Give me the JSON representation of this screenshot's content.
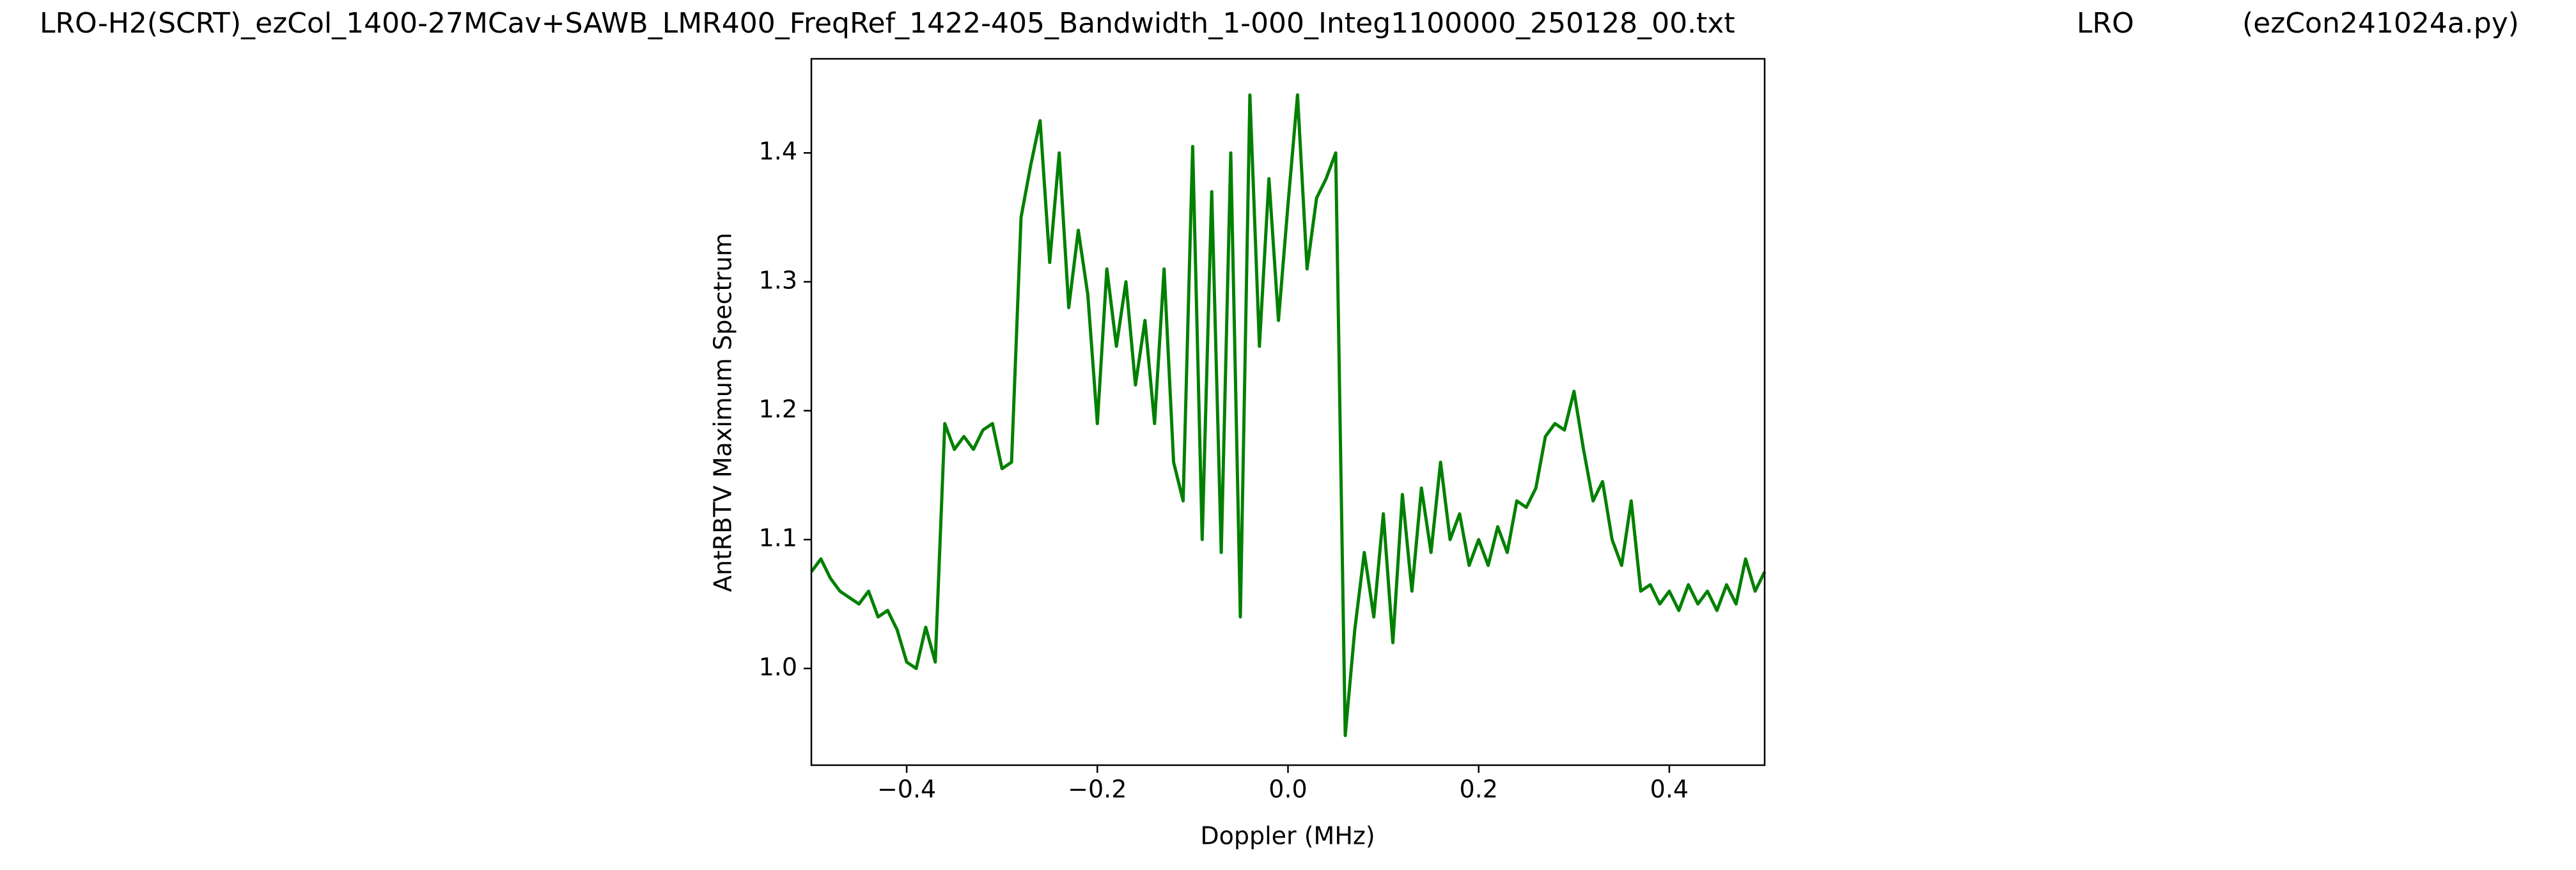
{
  "chart_data": {
    "type": "line",
    "title": "LRO-H2(SCRT)_ezCol_1400-27MCav+SAWB_LMR400_FreqRef_1422-405_Bandwidth_1-000_Integ1100000_250128_00.txt",
    "annotations": [
      "LRO",
      "(ezCon241024a.py)"
    ],
    "xlabel": "Doppler (MHz)",
    "ylabel": "AntRBTV Maximum Spectrum",
    "color": "#008000",
    "xlim": [
      -0.5,
      0.5
    ],
    "ylim": [
      0.925,
      1.473
    ],
    "xticks": [
      {
        "value": -0.4,
        "label": "−0.4"
      },
      {
        "value": -0.2,
        "label": "−0.2"
      },
      {
        "value": 0,
        "label": "0.0"
      },
      0.2,
      0.4
    ],
    "yticks": [
      {
        "value": 1,
        "label": "1.0"
      },
      1.1,
      1.2,
      1.3,
      1.4
    ],
    "x": [
      -0.5,
      -0.49,
      -0.48,
      -0.47,
      -0.46,
      -0.45,
      -0.44,
      -0.43,
      -0.42,
      -0.41,
      -0.4,
      -0.39,
      -0.38,
      -0.37,
      -0.36,
      -0.35,
      -0.34,
      -0.33,
      -0.32,
      -0.31,
      -0.3,
      -0.29,
      -0.28,
      -0.27,
      -0.26,
      -0.25,
      -0.24,
      -0.23,
      -0.22,
      -0.21,
      -0.2,
      -0.19,
      -0.18,
      -0.17,
      -0.16,
      -0.15,
      -0.14,
      -0.13,
      -0.12,
      -0.11,
      -0.1,
      -0.09,
      -0.08,
      -0.07,
      -0.06,
      -0.05,
      -0.04,
      -0.03,
      -0.02,
      -0.01,
      0,
      0.01,
      0.02,
      0.03,
      0.04,
      0.05,
      0.06,
      0.07,
      0.08,
      0.09,
      0.1,
      0.11,
      0.12,
      0.13,
      0.14,
      0.15,
      0.16,
      0.17,
      0.18,
      0.19,
      0.2,
      0.21,
      0.22,
      0.23,
      0.24,
      0.25,
      0.26,
      0.27,
      0.28,
      0.29,
      0.3,
      0.31,
      0.32,
      0.33,
      0.34,
      0.35,
      0.36,
      0.37,
      0.38,
      0.39,
      0.4,
      0.41,
      0.42,
      0.43,
      0.44,
      0.45,
      0.46,
      0.47,
      0.48,
      0.49,
      0.5
    ],
    "values": [
      1.075,
      1.085,
      1.07,
      1.06,
      1.055,
      1.05,
      1.06,
      1.04,
      1.045,
      1.03,
      1.005,
      1.0,
      1.032,
      1.005,
      1.19,
      1.17,
      1.18,
      1.17,
      1.185,
      1.19,
      1.155,
      1.16,
      1.35,
      1.39,
      1.425,
      1.315,
      1.4,
      1.28,
      1.34,
      1.29,
      1.19,
      1.31,
      1.25,
      1.3,
      1.22,
      1.27,
      1.19,
      1.31,
      1.16,
      1.13,
      1.405,
      1.1,
      1.37,
      1.09,
      1.4,
      1.04,
      1.445,
      1.25,
      1.38,
      1.27,
      1.36,
      1.445,
      1.31,
      1.365,
      1.38,
      1.4,
      0.948,
      1.03,
      1.09,
      1.04,
      1.12,
      1.02,
      1.135,
      1.06,
      1.14,
      1.09,
      1.16,
      1.1,
      1.12,
      1.08,
      1.1,
      1.08,
      1.11,
      1.09,
      1.13,
      1.125,
      1.14,
      1.18,
      1.19,
      1.185,
      1.215,
      1.17,
      1.13,
      1.145,
      1.1,
      1.08,
      1.13,
      1.06,
      1.065,
      1.05,
      1.06,
      1.045,
      1.065,
      1.05,
      1.06,
      1.045,
      1.065,
      1.05,
      1.085,
      1.06,
      1.075
    ]
  }
}
